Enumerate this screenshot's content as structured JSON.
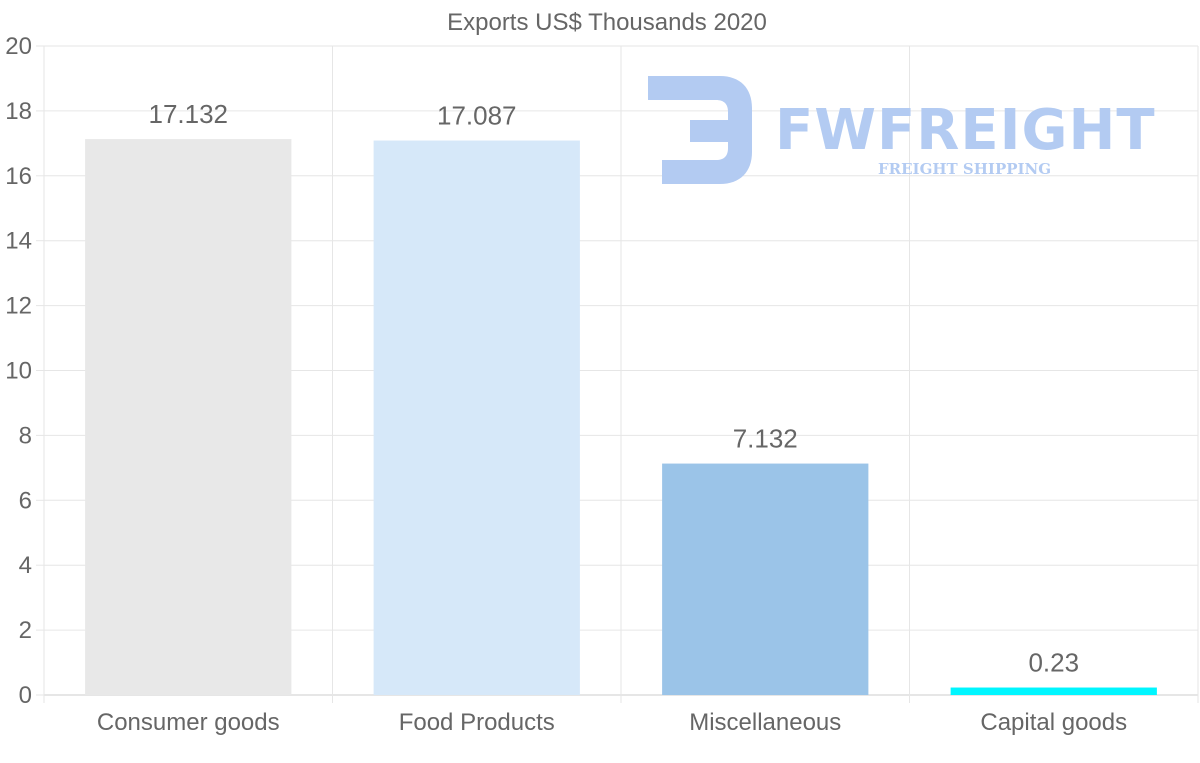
{
  "chart_data": {
    "type": "bar",
    "title": "Exports US$ Thousands 2020",
    "categories": [
      "Consumer goods",
      "Food Products",
      "Miscellaneous",
      "Capital goods"
    ],
    "values": [
      17.132,
      17.087,
      7.132,
      0.23
    ],
    "value_labels": [
      "17.132",
      "17.087",
      "7.132",
      "0.23"
    ],
    "colors": [
      "#e8e8e8",
      "#d6e8f9",
      "#9bc4e8",
      "#00f6ff"
    ],
    "ylim": [
      0,
      20
    ],
    "yticks": [
      0,
      2,
      4,
      6,
      8,
      10,
      12,
      14,
      16,
      18,
      20
    ],
    "xlabel": "",
    "ylabel": "",
    "grid": true,
    "legend": "none"
  },
  "watermark": {
    "brand": "FWFREIGHT",
    "tagline": "FREIGHT SHIPPING",
    "color": "#b3cbf2",
    "icon": "fwfreight-logo-icon"
  }
}
